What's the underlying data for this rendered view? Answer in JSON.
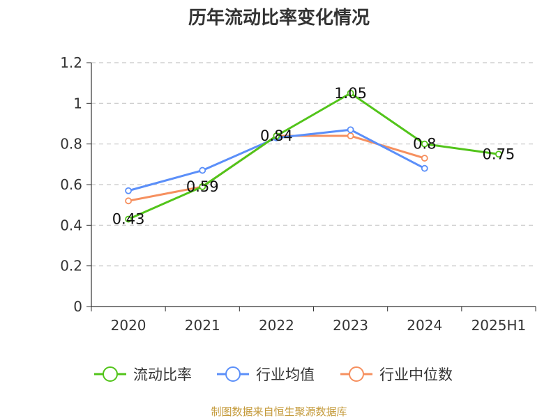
{
  "chart_data": {
    "type": "line",
    "title": "历年流动比率变化情况",
    "categories": [
      "2020",
      "2021",
      "2022",
      "2023",
      "2024",
      "2025H1"
    ],
    "ylim": [
      0,
      1.2
    ],
    "yticks": [
      "0",
      "0.2",
      "0.4",
      "0.6",
      "0.8",
      "1",
      "1.2"
    ],
    "grid": true,
    "legend_position": "bottom",
    "series": [
      {
        "name": "流动比率",
        "color": "#52c41a",
        "values": [
          0.43,
          0.59,
          0.84,
          1.05,
          0.8,
          0.75
        ],
        "data_labels": [
          "0.43",
          "0.59",
          "0.84",
          "1.05",
          "0.8",
          "0.75"
        ]
      },
      {
        "name": "行业均值",
        "color": "#5b8ff9",
        "values": [
          0.57,
          0.67,
          0.83,
          0.87,
          0.68,
          null
        ]
      },
      {
        "name": "行业中位数",
        "color": "#f6905f",
        "values": [
          0.52,
          0.59,
          0.84,
          0.84,
          0.73,
          null
        ]
      }
    ]
  },
  "source": {
    "text": "制图数据来自恒生聚源数据库",
    "color": "#c49a3a"
  }
}
